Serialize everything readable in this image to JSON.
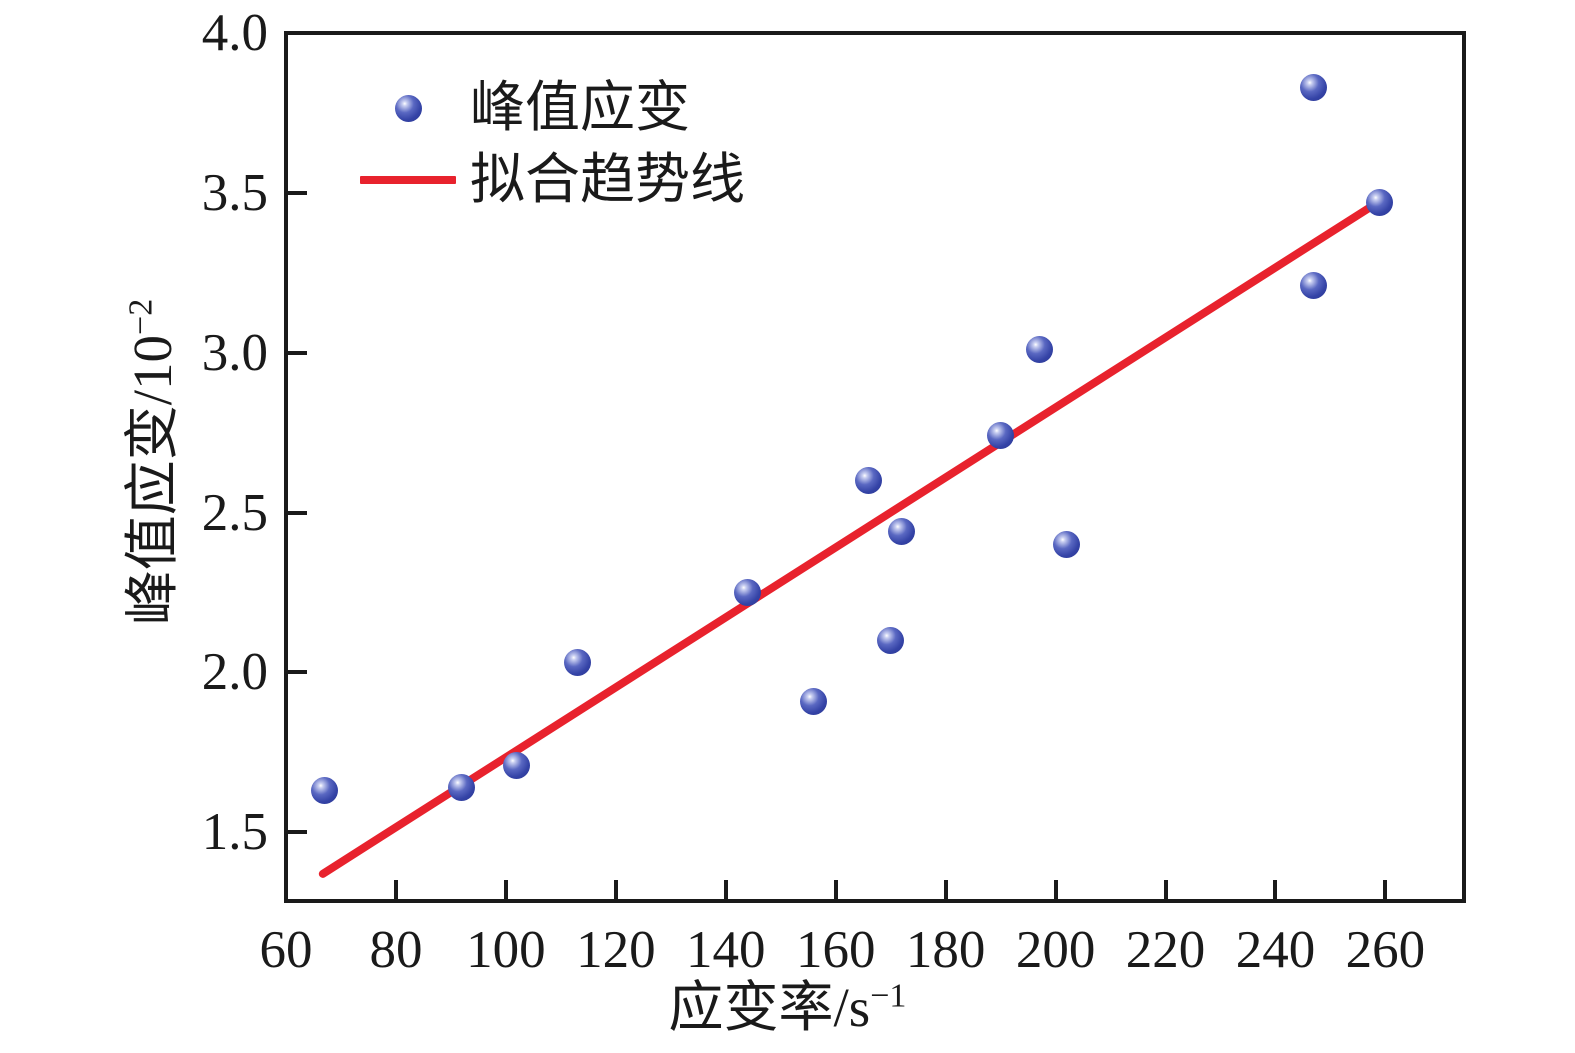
{
  "chart_data": {
    "type": "scatter",
    "title": "",
    "xlabel": {
      "base": "应变率/s",
      "sup": "−1",
      "full": "应变率/s⁻¹"
    },
    "ylabel": {
      "base": "峰值应变/10",
      "sup": "−2",
      "full": "峰值应变/10⁻²"
    },
    "xlim": [
      60,
      274.3
    ],
    "ylim": [
      1.285,
      4.0
    ],
    "x_tick_labels": [
      "60",
      "80",
      "100",
      "120",
      "140",
      "160",
      "180",
      "200",
      "220",
      "240",
      "260"
    ],
    "y_tick_labels": [
      "1.5",
      "2.0",
      "2.5",
      "3.0",
      "3.5",
      "4.0"
    ],
    "grid": false,
    "legend_position": "upper-left-inside",
    "series": [
      {
        "name": "峰值应变",
        "type": "scatter",
        "points": [
          [
            67,
            1.63
          ],
          [
            92,
            1.64
          ],
          [
            102,
            1.71
          ],
          [
            113,
            2.03
          ],
          [
            144,
            2.25
          ],
          [
            156,
            1.91
          ],
          [
            166,
            2.6
          ],
          [
            170,
            2.1
          ],
          [
            172,
            2.44
          ],
          [
            190,
            2.74
          ],
          [
            197,
            3.01
          ],
          [
            202,
            2.4
          ],
          [
            247,
            3.83
          ],
          [
            247,
            3.21
          ],
          [
            259,
            3.47
          ]
        ]
      },
      {
        "name": "拟合趋势线",
        "type": "line",
        "points": [
          [
            66.7,
            1.37
          ],
          [
            258.6,
            3.47
          ]
        ]
      }
    ]
  },
  "legend": {
    "items": [
      {
        "label": "峰值应变",
        "marker": "sphere-point"
      },
      {
        "label": "拟合趋势线",
        "marker": "red-line"
      }
    ]
  },
  "colors": {
    "marker_blue": "#3443a6",
    "trend_red": "#e8222d",
    "axis_black": "#1a1a1a",
    "background": "#ffffff"
  }
}
